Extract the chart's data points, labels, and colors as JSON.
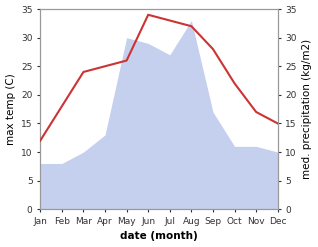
{
  "months": [
    "Jan",
    "Feb",
    "Mar",
    "Apr",
    "May",
    "Jun",
    "Jul",
    "Aug",
    "Sep",
    "Oct",
    "Nov",
    "Dec"
  ],
  "temperature": [
    12,
    18,
    24,
    25,
    26,
    34,
    33,
    32,
    28,
    22,
    17,
    15
  ],
  "precipitation": [
    8,
    8,
    10,
    13,
    30,
    29,
    27,
    33,
    17,
    11,
    11,
    10
  ],
  "temp_color": "#cc3333",
  "precip_color": "#c5d0ee",
  "ylim": [
    0,
    35
  ],
  "yticks": [
    0,
    5,
    10,
    15,
    20,
    25,
    30,
    35
  ],
  "ylabel_left": "max temp (C)",
  "ylabel_right": "med. precipitation (kg/m2)",
  "xlabel": "date (month)",
  "bg_color": "#ffffff",
  "label_fontsize": 7.5,
  "tick_fontsize": 6.5
}
